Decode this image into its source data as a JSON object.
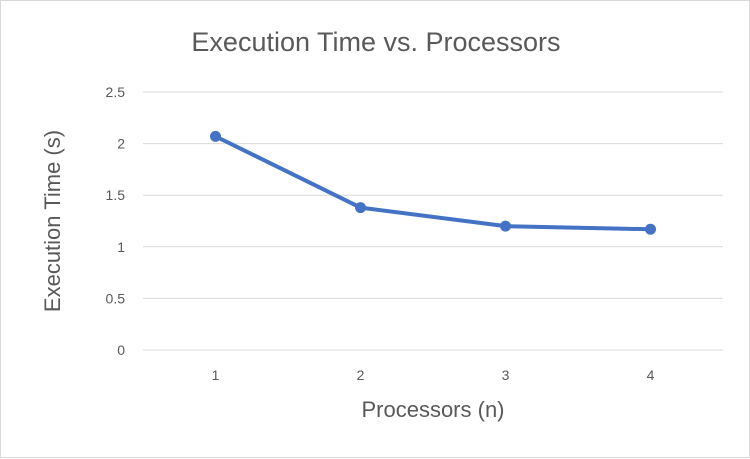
{
  "chart_data": {
    "type": "line",
    "title": "Execution Time vs. Processors",
    "xlabel": "Processors (n)",
    "ylabel": "Execution Time (s)",
    "categories": [
      "1",
      "2",
      "3",
      "4"
    ],
    "series": [
      {
        "values": [
          2.07,
          1.38,
          1.2,
          1.17
        ],
        "color": "#4472c4"
      }
    ],
    "ylim": [
      0,
      2.5
    ],
    "yticks": [
      "0",
      "0.5",
      "1",
      "1.5",
      "2",
      "2.5"
    ],
    "grid": true,
    "legend": "none"
  }
}
